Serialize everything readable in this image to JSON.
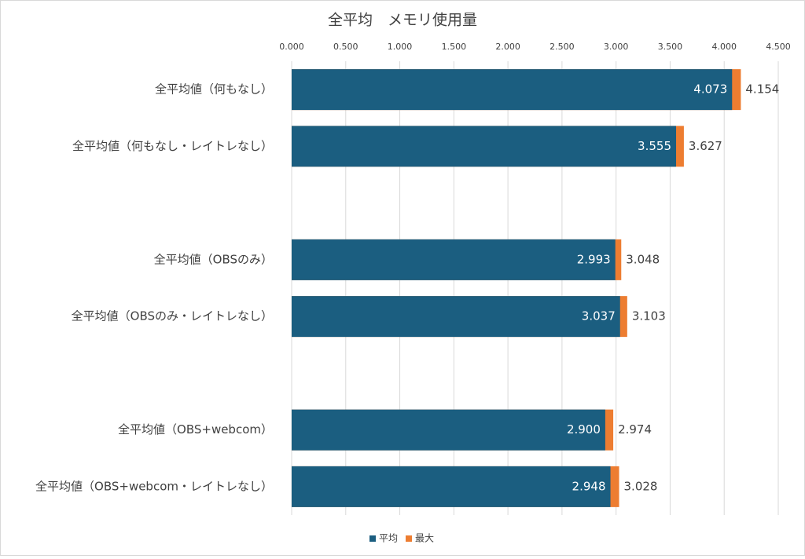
{
  "chart_data": {
    "type": "bar",
    "orientation": "horizontal",
    "overlap": true,
    "title": "全平均　メモリ使用量",
    "categories": [
      "全平均値（何もなし）",
      "全平均値（何もなし・レイトレなし）",
      null,
      "全平均値（OBSのみ）",
      "全平均値（OBSのみ・レイトレなし）",
      null,
      "全平均値（OBS+webcom）",
      "全平均値（OBS+webcom・レイトレなし）"
    ],
    "series": [
      {
        "name": "最大",
        "color": "#ed7d31",
        "values": [
          4.154,
          3.627,
          null,
          3.048,
          3.103,
          null,
          2.974,
          3.028
        ],
        "value_labels": [
          "4.154",
          "3.627",
          null,
          "3.048",
          "3.103",
          null,
          "2.974",
          "3.028"
        ]
      },
      {
        "name": "平均",
        "color": "#1b5e80",
        "values": [
          4.073,
          3.555,
          null,
          2.993,
          3.037,
          null,
          2.9,
          2.948
        ],
        "value_labels": [
          "4.073",
          "3.555",
          null,
          "2.993",
          "3.037",
          null,
          "2.900",
          "2.948"
        ]
      }
    ],
    "legend_order": [
      1,
      0
    ],
    "xlim": [
      0,
      4.5
    ],
    "xticks": [
      {
        "value": 0,
        "label": "0.000"
      },
      {
        "value": 0.5,
        "label": "0.500"
      },
      {
        "value": 1,
        "label": "1.000"
      },
      {
        "value": 1.5,
        "label": "1.500"
      },
      {
        "value": 2,
        "label": "2.000"
      },
      {
        "value": 2.5,
        "label": "2.500"
      },
      {
        "value": 3,
        "label": "3.000"
      },
      {
        "value": 3.5,
        "label": "3.500"
      },
      {
        "value": 4,
        "label": "4.000"
      },
      {
        "value": 4.5,
        "label": "4.500"
      }
    ],
    "grid": true,
    "legend": "bottom"
  }
}
